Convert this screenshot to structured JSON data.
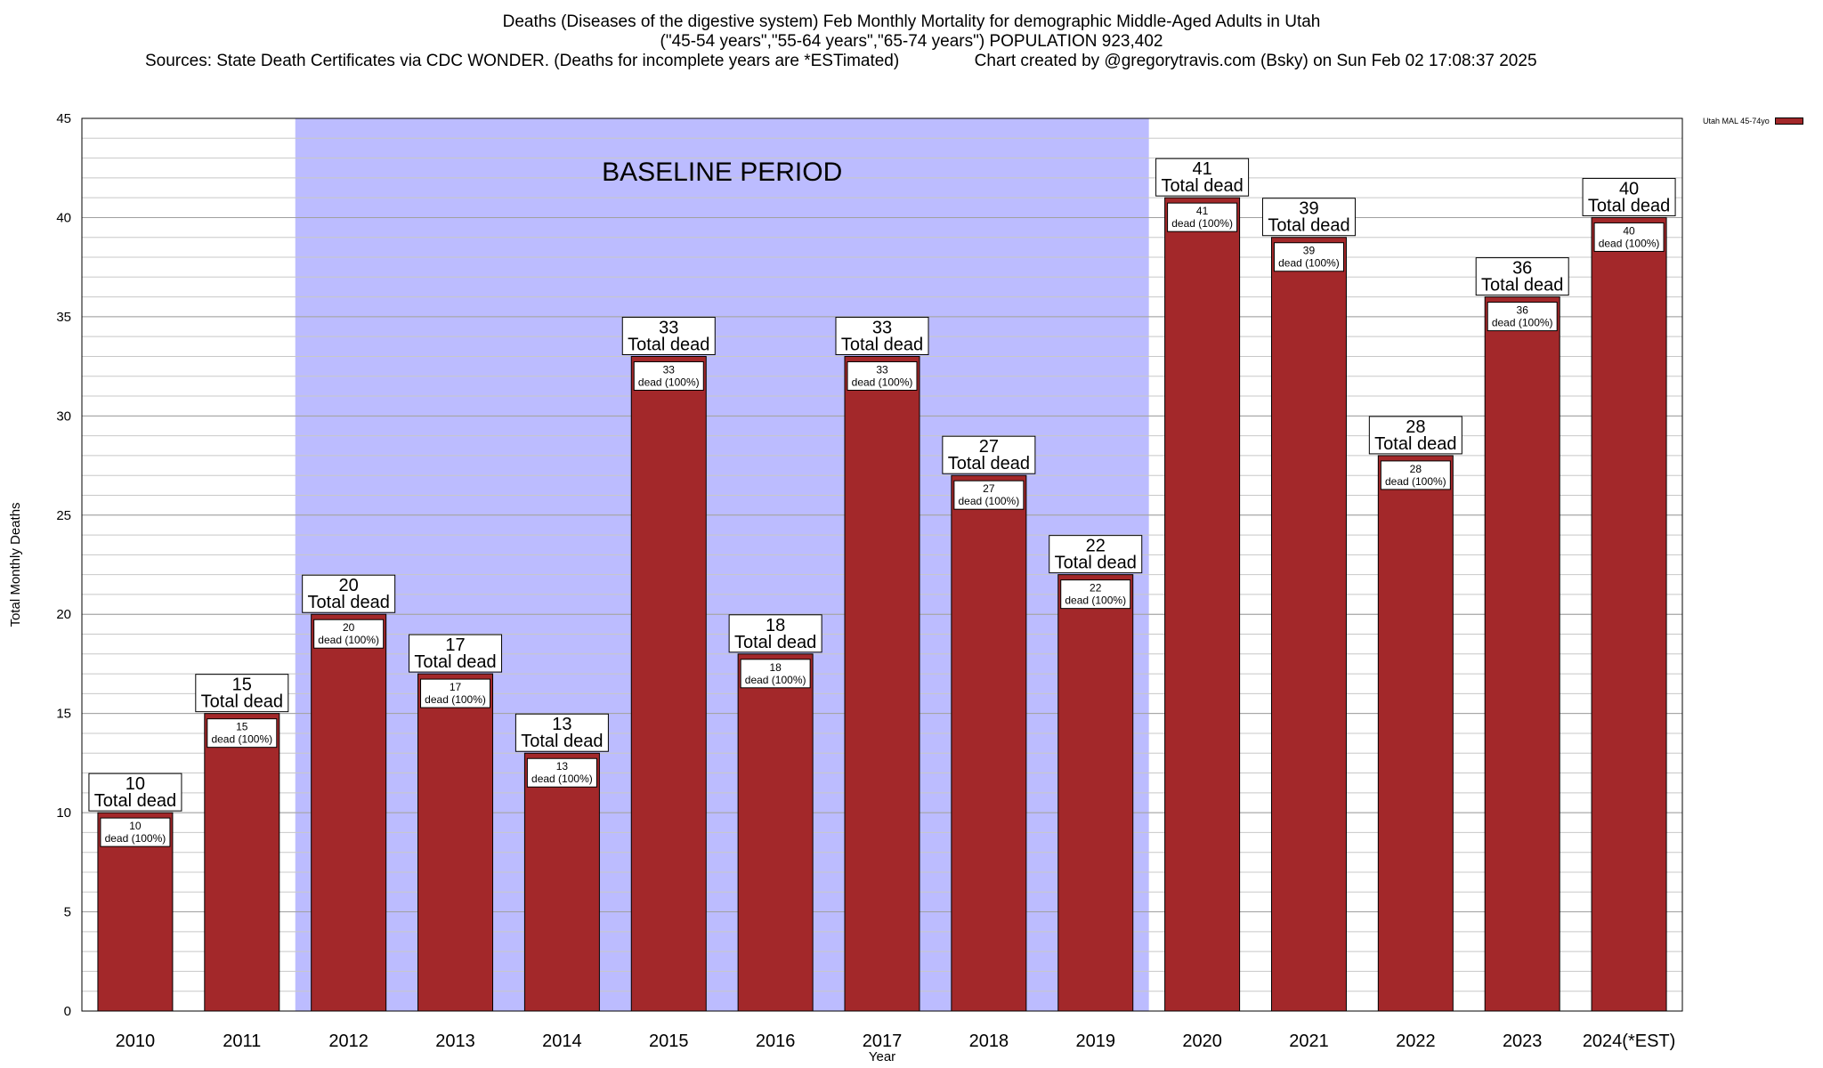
{
  "header": {
    "title_line1": "Deaths (Diseases of the digestive system) Feb Monthly Mortality for demographic Middle-Aged Adults in Utah",
    "title_line2": "(\"45-54 years\",\"55-64 years\",\"65-74 years\") POPULATION 923,402",
    "sources": "Sources: State Death Certificates via CDC WONDER. (Deaths for incomplete years are *ESTimated)",
    "credit": "Chart created by @gregorytravis.com (Bsky) on Sun Feb 02 17:08:37 2025"
  },
  "legend": {
    "label": "Utah MAL 45-74yo"
  },
  "chart_data": {
    "type": "bar",
    "title": "Deaths (Diseases of the digestive system) Feb Monthly Mortality for demographic Middle-Aged Adults in Utah",
    "xlabel": "Year",
    "ylabel": "Total Monthly Deaths",
    "ylim": [
      0,
      45
    ],
    "yticks": [
      0,
      5,
      10,
      15,
      20,
      25,
      30,
      35,
      40,
      45
    ],
    "grid": true,
    "legend_position": "top-right",
    "categories": [
      "2010",
      "2011",
      "2012",
      "2013",
      "2014",
      "2015",
      "2016",
      "2017",
      "2018",
      "2019",
      "2020",
      "2021",
      "2022",
      "2023",
      "2024(*EST)"
    ],
    "series": [
      {
        "name": "Utah MAL 45-74yo",
        "color": "#a3282a",
        "values": [
          10,
          15,
          20,
          17,
          13,
          33,
          18,
          33,
          27,
          22,
          41,
          39,
          28,
          36,
          40
        ]
      }
    ],
    "label_top_text": "Total dead",
    "label_inner_text": "dead (100%)",
    "baseline_period": {
      "label": "BASELINE PERIOD",
      "start": "2012",
      "end": "2019",
      "color": "#bcbcff"
    }
  }
}
